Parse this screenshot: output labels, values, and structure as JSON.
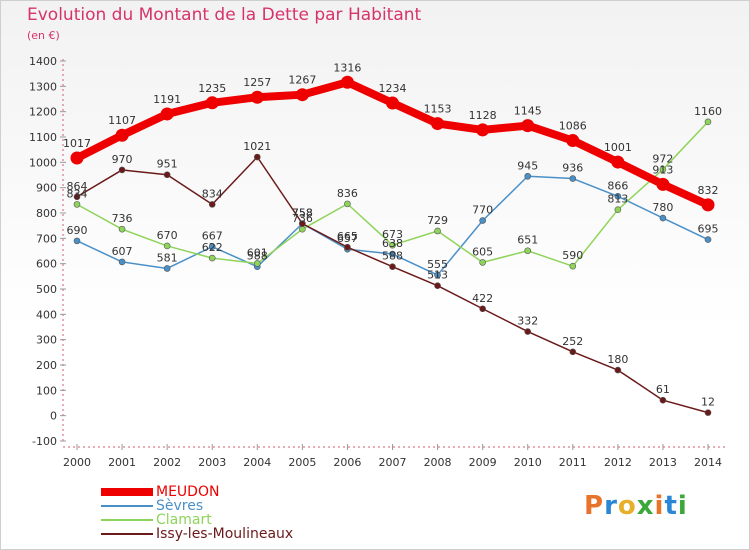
{
  "chart_data": {
    "type": "line",
    "title": "Evolution du Montant de la Dette par Habitant",
    "subtitle": "(en €)",
    "x": [
      "2000",
      "2001",
      "2002",
      "2003",
      "2004",
      "2005",
      "2006",
      "2007",
      "2008",
      "2009",
      "2010",
      "2011",
      "2012",
      "2013",
      "2014"
    ],
    "ylim": [
      -100,
      1400
    ],
    "yticks": [
      -100,
      0,
      100,
      200,
      300,
      400,
      500,
      600,
      700,
      800,
      900,
      1000,
      1100,
      1200,
      1300,
      1400
    ],
    "grid": false,
    "legend_position": "bottom-left",
    "series": [
      {
        "name": "MEUDON",
        "color": "#ee0000",
        "emphasis": true,
        "values": [
          1017,
          1107,
          1191,
          1235,
          1257,
          1267,
          1316,
          1234,
          1153,
          1128,
          1145,
          1086,
          1001,
          913,
          832
        ]
      },
      {
        "name": "Sèvres",
        "color": "#4a90c8",
        "values": [
          690,
          607,
          581,
          667,
          588,
          758,
          657,
          638,
          555,
          770,
          945,
          936,
          866,
          780,
          695
        ]
      },
      {
        "name": "Clamart",
        "color": "#8fd45a",
        "values": [
          834,
          736,
          670,
          622,
          601,
          736,
          836,
          673,
          729,
          605,
          651,
          590,
          813,
          972,
          1160
        ]
      },
      {
        "name": "Issy-les-Moulineaux",
        "color": "#6b1a1a",
        "values": [
          864,
          970,
          951,
          834,
          1021,
          758,
          665,
          588,
          513,
          422,
          332,
          252,
          180,
          61,
          12
        ]
      }
    ]
  },
  "logo": {
    "text": "Proxiti"
  }
}
